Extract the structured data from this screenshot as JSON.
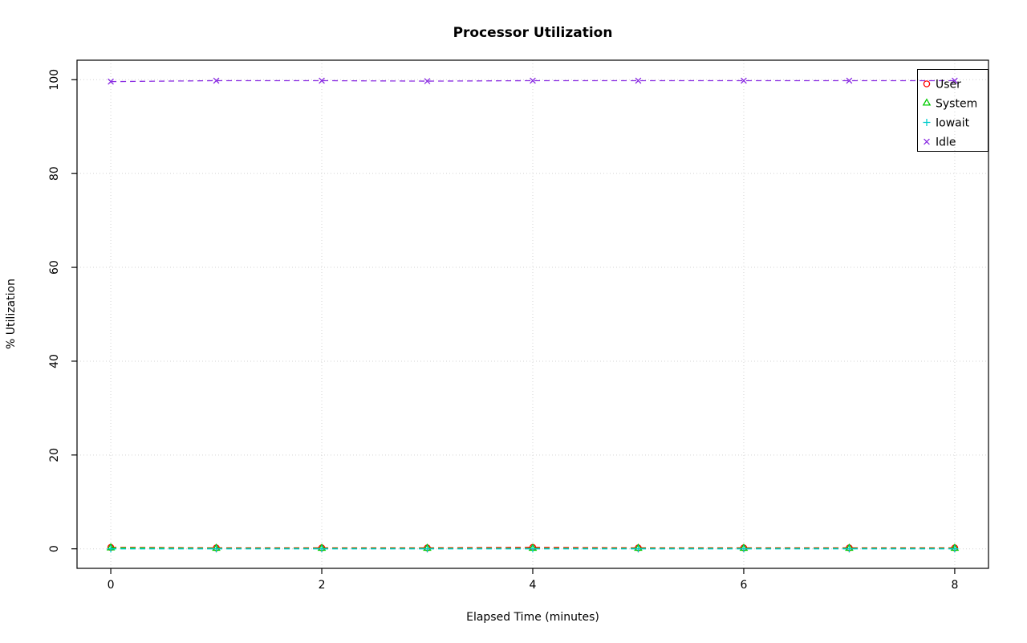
{
  "chart_data": {
    "type": "line",
    "title": "Processor Utilization",
    "xlabel": "Elapsed Time (minutes)",
    "ylabel": "% Utilization",
    "x": [
      0,
      1,
      2,
      3,
      4,
      5,
      6,
      7,
      8
    ],
    "series": [
      {
        "name": "User",
        "color": "#ff0000",
        "marker": "circle",
        "values": [
          0.3,
          0.2,
          0.2,
          0.2,
          0.3,
          0.2,
          0.2,
          0.2,
          0.2
        ]
      },
      {
        "name": "System",
        "color": "#00cc00",
        "marker": "triangle",
        "values": [
          0.2,
          0.1,
          0.1,
          0.1,
          0.1,
          0.1,
          0.1,
          0.1,
          0.1
        ]
      },
      {
        "name": "Iowait",
        "color": "#00cccc",
        "marker": "plus",
        "values": [
          0.0,
          0.0,
          0.0,
          0.0,
          0.0,
          0.0,
          0.0,
          0.0,
          0.0
        ]
      },
      {
        "name": "Idle",
        "color": "#8a2be2",
        "marker": "x",
        "values": [
          99.6,
          99.8,
          99.8,
          99.7,
          99.8,
          99.8,
          99.8,
          99.8,
          99.8
        ]
      }
    ],
    "xticks": [
      0,
      2,
      4,
      6,
      8
    ],
    "yticks": [
      0,
      20,
      40,
      60,
      80,
      100
    ],
    "xlim": [
      -0.32,
      8.32
    ],
    "ylim": [
      -4.16,
      104.16
    ],
    "grid": true,
    "line_style": "dashed",
    "legend_position": "top-right"
  },
  "colors": {
    "grid": "#d3d3d3",
    "axis": "#000000",
    "background": "#ffffff"
  }
}
